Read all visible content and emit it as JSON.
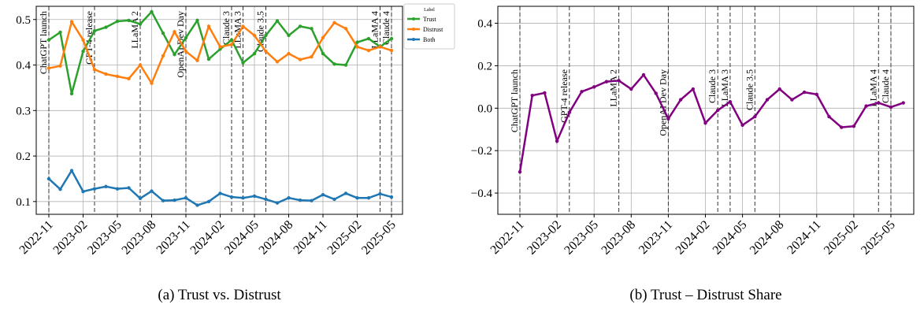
{
  "chart_data": [
    {
      "type": "line",
      "caption": "(a) Trust vs. Distrust",
      "x": [
        "2022-11",
        "2022-12",
        "2023-01",
        "2023-02",
        "2023-03",
        "2023-04",
        "2023-05",
        "2023-06",
        "2023-07",
        "2023-08",
        "2023-09",
        "2023-10",
        "2023-11",
        "2023-12",
        "2024-01",
        "2024-02",
        "2024-03",
        "2024-04",
        "2024-05",
        "2024-06",
        "2024-07",
        "2024-08",
        "2024-09",
        "2024-10",
        "2024-11",
        "2024-12",
        "2025-01",
        "2025-02",
        "2025-03",
        "2025-04",
        "2025-05"
      ],
      "xticks": [
        "2022-11",
        "2023-02",
        "2023-05",
        "2023-08",
        "2023-11",
        "2024-02",
        "2024-05",
        "2024-08",
        "2024-11",
        "2025-02",
        "2025-05"
      ],
      "ylim": [
        0.072,
        0.529
      ],
      "yticks": [
        0.1,
        0.2,
        0.3,
        0.4,
        0.5
      ],
      "grid": true,
      "legend_title": "Label",
      "legend": "outside upper right",
      "events": [
        {
          "label": "ChatGPT launch",
          "x": "2022-11"
        },
        {
          "label": "GPT-4 release",
          "x": "2023-03"
        },
        {
          "label": "LLaMA 2",
          "x": "2023-07"
        },
        {
          "label": "OpenAI Dev Day",
          "x": "2023-11"
        },
        {
          "label": "Claude 3",
          "x": "2024-03"
        },
        {
          "label": "LLaMA 3",
          "x": "2024-04"
        },
        {
          "label": "Claude 3.5",
          "x": "2024-06"
        },
        {
          "label": "LLaMA 4",
          "x": "2025-04"
        },
        {
          "label": "Claude 4",
          "x": "2025-05"
        }
      ],
      "series": [
        {
          "name": "Trust",
          "color": "#2ca02c",
          "values": [
            0.455,
            0.472,
            0.337,
            0.43,
            0.475,
            0.483,
            0.496,
            0.498,
            0.49,
            0.517,
            0.47,
            0.423,
            0.46,
            0.498,
            0.413,
            0.435,
            0.455,
            0.405,
            0.425,
            0.465,
            0.497,
            0.465,
            0.485,
            0.48,
            0.425,
            0.402,
            0.4,
            0.45,
            0.458,
            0.44,
            0.458
          ]
        },
        {
          "name": "Distrust",
          "color": "#ff7f0e",
          "values": [
            0.393,
            0.398,
            0.495,
            0.455,
            0.39,
            0.38,
            0.375,
            0.37,
            0.4,
            0.36,
            0.42,
            0.473,
            0.43,
            0.41,
            0.485,
            0.44,
            0.445,
            0.485,
            0.465,
            0.43,
            0.407,
            0.425,
            0.412,
            0.418,
            0.46,
            0.493,
            0.48,
            0.44,
            0.432,
            0.44,
            0.432
          ]
        },
        {
          "name": "Both",
          "color": "#1f77b4",
          "values": [
            0.15,
            0.127,
            0.168,
            0.122,
            0.128,
            0.133,
            0.128,
            0.13,
            0.107,
            0.123,
            0.102,
            0.103,
            0.108,
            0.092,
            0.1,
            0.118,
            0.11,
            0.108,
            0.112,
            0.105,
            0.097,
            0.108,
            0.103,
            0.102,
            0.115,
            0.105,
            0.118,
            0.108,
            0.108,
            0.117,
            0.11
          ]
        }
      ]
    },
    {
      "type": "line",
      "caption": "(b) Trust – Distrust Share",
      "x": [
        "2022-11",
        "2022-12",
        "2023-01",
        "2023-02",
        "2023-03",
        "2023-04",
        "2023-05",
        "2023-06",
        "2023-07",
        "2023-08",
        "2023-09",
        "2023-10",
        "2023-11",
        "2023-12",
        "2024-01",
        "2024-02",
        "2024-03",
        "2024-04",
        "2024-05",
        "2024-06",
        "2024-07",
        "2024-08",
        "2024-09",
        "2024-10",
        "2024-11",
        "2024-12",
        "2025-01",
        "2025-02",
        "2025-03",
        "2025-04",
        "2025-05",
        "2025-06"
      ],
      "xticks": [
        "2022-11",
        "2023-02",
        "2023-05",
        "2023-08",
        "2023-11",
        "2024-02",
        "2024-05",
        "2024-08",
        "2024-11",
        "2025-02",
        "2025-05"
      ],
      "ylim": [
        -0.5,
        0.48
      ],
      "yticks": [
        {
          "value": -0.4,
          "label": "−0.4"
        },
        {
          "value": -0.2,
          "label": "−0.2"
        },
        {
          "value": 0,
          "label": "0.0"
        },
        0.2,
        0.4
      ],
      "grid": true,
      "events": [
        {
          "label": "ChatGPT launch",
          "x": "2022-11"
        },
        {
          "label": "GPT-4 release",
          "x": "2023-03"
        },
        {
          "label": "LLaMA 2",
          "x": "2023-07"
        },
        {
          "label": "OpenAI Dev Day",
          "x": "2023-11"
        },
        {
          "label": "Claude 3",
          "x": "2024-03"
        },
        {
          "label": "LLaMA 3",
          "x": "2024-04"
        },
        {
          "label": "Claude 3.5",
          "x": "2024-06"
        },
        {
          "label": "LLaMA 4",
          "x": "2025-04"
        },
        {
          "label": "Claude 4",
          "x": "2025-05"
        }
      ],
      "series": [
        {
          "color": "#800080",
          "values": [
            -0.3,
            0.06,
            0.072,
            -0.155,
            -0.02,
            0.078,
            0.1,
            0.125,
            0.13,
            0.09,
            0.157,
            0.07,
            -0.05,
            0.04,
            0.09,
            -0.07,
            -0.01,
            0.03,
            -0.08,
            -0.04,
            0.04,
            0.09,
            0.04,
            0.075,
            0.065,
            -0.04,
            -0.09,
            -0.085,
            0.01,
            0.025,
            0.005,
            0.025
          ]
        }
      ]
    }
  ]
}
